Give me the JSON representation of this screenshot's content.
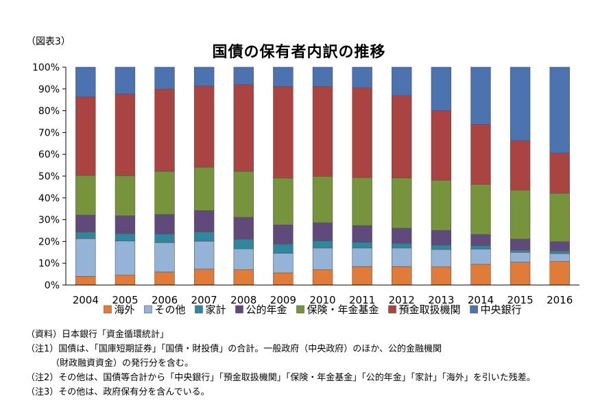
{
  "figure_label": "（図表3）",
  "chart_data": {
    "type": "bar",
    "stacked": true,
    "title": "国債の保有者内訳の推移",
    "xlabel": "",
    "ylabel": "",
    "ylim": [
      0,
      100
    ],
    "y_ticks": [
      "0%",
      "10%",
      "20%",
      "30%",
      "40%",
      "50%",
      "60%",
      "70%",
      "80%",
      "90%",
      "100%"
    ],
    "grid": false,
    "legend": "bottom",
    "categories": [
      "2004",
      "2005",
      "2006",
      "2007",
      "2008",
      "2009",
      "2010",
      "2011",
      "2012",
      "2013",
      "2014",
      "2015",
      "2016"
    ],
    "series": [
      {
        "name": "海外",
        "color": "#E07B39",
        "values": [
          4.0,
          4.5,
          6.0,
          7.3,
          7.0,
          5.6,
          7.0,
          8.5,
          8.5,
          8.3,
          9.5,
          10.5,
          10.8
        ]
      },
      {
        "name": "その他",
        "color": "#95B3D7",
        "values": [
          17.3,
          15.7,
          13.5,
          12.8,
          9.6,
          9.0,
          10.0,
          8.5,
          8.5,
          8.0,
          7.0,
          4.5,
          3.6
        ]
      },
      {
        "name": "家計",
        "color": "#31859C",
        "values": [
          3.0,
          3.4,
          3.9,
          4.3,
          4.4,
          4.2,
          3.3,
          2.6,
          2.1,
          2.0,
          1.6,
          1.0,
          1.3
        ]
      },
      {
        "name": "公的年金",
        "color": "#604A7B",
        "values": [
          7.8,
          8.2,
          9.0,
          9.8,
          10.1,
          8.8,
          8.3,
          7.7,
          7.0,
          6.8,
          5.1,
          5.1,
          4.2
        ]
      },
      {
        "name": "保険・年金基金",
        "color": "#77933C",
        "values": [
          18.2,
          18.4,
          19.8,
          19.9,
          21.1,
          21.5,
          21.3,
          22.0,
          23.1,
          23.0,
          23.0,
          22.5,
          22.2
        ]
      },
      {
        "name": "預金取扱機関",
        "color": "#A94442",
        "values": [
          36.0,
          37.5,
          37.7,
          37.3,
          39.8,
          42.0,
          41.2,
          41.3,
          37.7,
          32.0,
          27.6,
          22.6,
          18.4
        ]
      },
      {
        "name": "中央銀行",
        "color": "#4C72B0",
        "values": [
          13.7,
          12.3,
          10.1,
          8.6,
          8.0,
          8.9,
          8.9,
          9.4,
          13.1,
          19.9,
          26.2,
          33.8,
          39.5
        ]
      }
    ]
  },
  "notes": {
    "source": "（資料）日本銀行「資金循環統計」",
    "note1": "（注1）国債は、「国庫短期証券」「国債・財投債」の合計。一般政府（中央政府）のほか、公的金融機関",
    "note1_cont": "（財政融資資金）の発行分を含む。",
    "note2": "（注2）その他は、国債等合計から「中央銀行」「預金取扱機関」「保険・年金基金」「公的年金」「家計」「海外」を引いた残差。",
    "note3": "（注3）その他は、政府保有分を含んでいる。"
  }
}
